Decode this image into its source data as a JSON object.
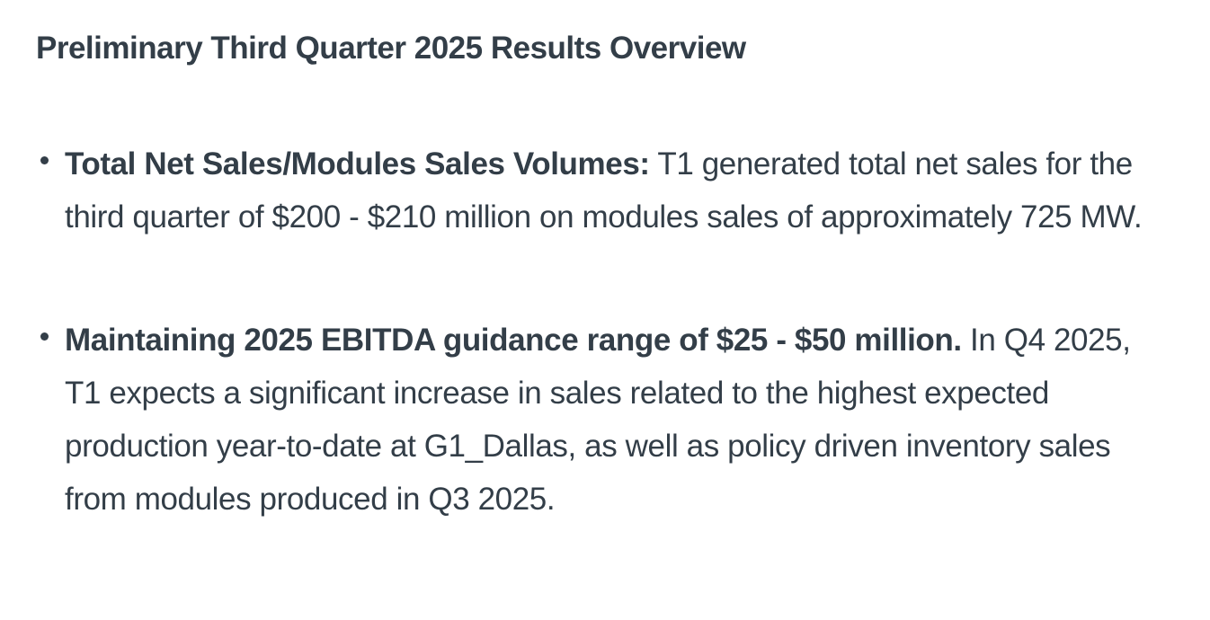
{
  "page": {
    "background": "#ffffff",
    "text_color": "#333e48"
  },
  "heading": "Preliminary Third Quarter 2025 Results Overview",
  "bullets": [
    {
      "label": "Total Net Sales/Modules Sales Volumes:",
      "text": "T1 generated total net sales for the third quarter of $200 - $210 million on modules sales of approximately 725 MW."
    },
    {
      "label": "Maintaining 2025 EBITDA guidance range of $25 - $50 million.",
      "text": "In Q4 2025, T1 expects a significant increase in sales related to the highest expected production year-to-date at G1_Dallas, as well as policy driven inventory sales from modules produced in Q3 2025."
    }
  ]
}
